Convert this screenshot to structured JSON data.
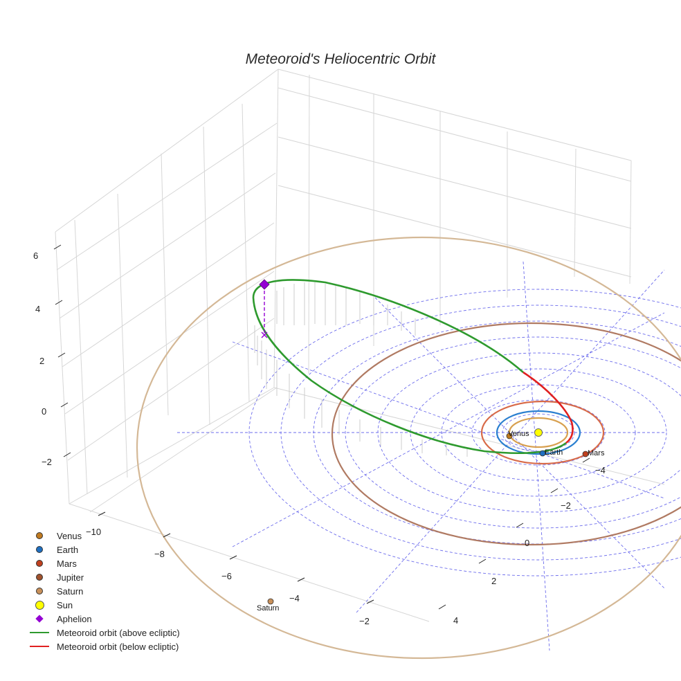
{
  "chart_title": "Meteoroid's Heliocentric Orbit",
  "chart_data": {
    "type": "scatter",
    "title": "Meteoroid's Heliocentric Orbit",
    "projection": "3d",
    "z_ticks": [
      "6",
      "4",
      "2",
      "0",
      "−2"
    ],
    "x_ticks": [
      "−10",
      "−8",
      "−6",
      "−4",
      "−2"
    ],
    "y_ticks": [
      "4",
      "2",
      "0",
      "−2",
      "−4"
    ],
    "bodies": [
      {
        "name": "Sun",
        "x": 0,
        "y": 0,
        "z": 0,
        "color": "#ffff00"
      },
      {
        "name": "Venus",
        "x": -0.72,
        "y": 0,
        "z": 0,
        "color": "#c07a20"
      },
      {
        "name": "Earth",
        "x": 0,
        "y": 1.0,
        "z": 0,
        "color": "#1f6fc0"
      },
      {
        "name": "Mars",
        "x": 1.52,
        "y": 0.2,
        "z": 0,
        "color": "#c0401e"
      },
      {
        "name": "Saturn",
        "x": -6.6,
        "y": 6.5,
        "z": 0,
        "color": "#c8905a"
      }
    ],
    "planet_orbits": [
      {
        "name": "Venus",
        "radius_au": 0.72,
        "color": "#d8a050"
      },
      {
        "name": "Earth",
        "radius_au": 1.0,
        "color": "#2a7fd0"
      },
      {
        "name": "Mars",
        "radius_au": 1.52,
        "color": "#d86a48"
      },
      {
        "name": "Jupiter",
        "radius_au": 5.2,
        "color": "#b07a62"
      },
      {
        "name": "Saturn",
        "radius_au": 9.5,
        "color": "#d4b896"
      }
    ],
    "aphelion": {
      "x": -10.4,
      "y": -4.0,
      "z": 4.8
    },
    "meteoroid_orbit": {
      "perihelion_au": 1.1,
      "aphelion_au": 11.2,
      "inclination_note": "above and below ecliptic"
    },
    "ecliptic_grid": {
      "rings": 10,
      "radial_lines": true
    }
  },
  "labels": {
    "venus": "Venus",
    "earth": "Earth",
    "mars": "Mars",
    "saturn": "Saturn"
  },
  "legend": [
    {
      "label": "Venus",
      "symbol": "dot",
      "color": "#c07a20"
    },
    {
      "label": "Earth",
      "symbol": "dot",
      "color": "#1f6fc0"
    },
    {
      "label": "Mars",
      "symbol": "dot",
      "color": "#c0401e"
    },
    {
      "label": "Jupiter",
      "symbol": "dot",
      "color": "#a0522d"
    },
    {
      "label": "Saturn",
      "symbol": "dot",
      "color": "#c8905a"
    },
    {
      "label": "Sun",
      "symbol": "sun",
      "color": "#ffff00"
    },
    {
      "label": "Aphelion",
      "symbol": "diamond",
      "color": "#9400d3"
    },
    {
      "label": "Meteoroid orbit (above ecliptic)",
      "symbol": "line",
      "color": "#2e9a2e"
    },
    {
      "label": "Meteoroid orbit (below ecliptic)",
      "symbol": "line",
      "color": "#e02020"
    }
  ]
}
